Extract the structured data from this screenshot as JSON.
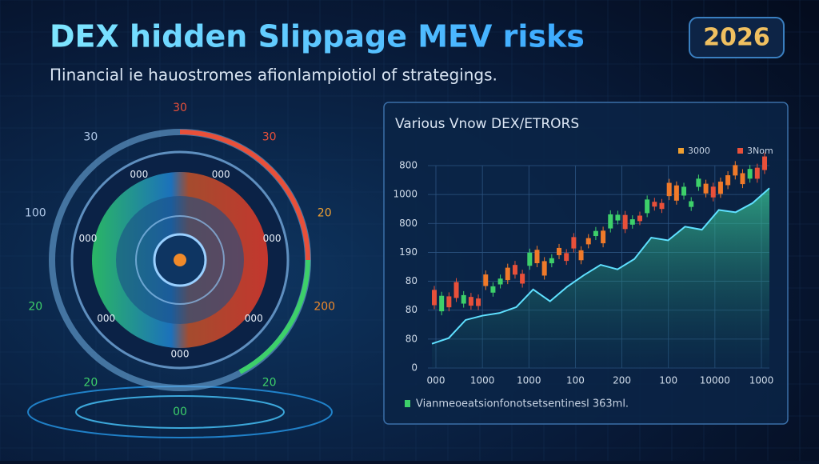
{
  "header": {
    "title": "DEX hidden Slippage MEV risks",
    "subtitle": "Πinancial ie hauostromes afionlampiotiol of strategings.",
    "badge": "2026"
  },
  "gauge": {
    "outer_labels": [
      "30",
      "30",
      "20",
      "200",
      "20",
      "00",
      "20",
      "20",
      "100",
      "30"
    ],
    "inner_labels": [
      "000",
      "000",
      "000",
      "000",
      "000",
      "000",
      "000"
    ]
  },
  "panel": {
    "title": "Various Vnow DEX/ETRORS",
    "legend": [
      "3000",
      "3Nom"
    ],
    "y_labels": [
      "800",
      "1000",
      "800",
      "190",
      "80",
      "80",
      "80",
      "0"
    ],
    "x_labels": [
      "000",
      "1000",
      "1000",
      "100",
      "200",
      "100",
      "10000",
      "1000"
    ],
    "footer": "Vianmeoeatsionfonotsetsentinesl 363ml."
  }
}
